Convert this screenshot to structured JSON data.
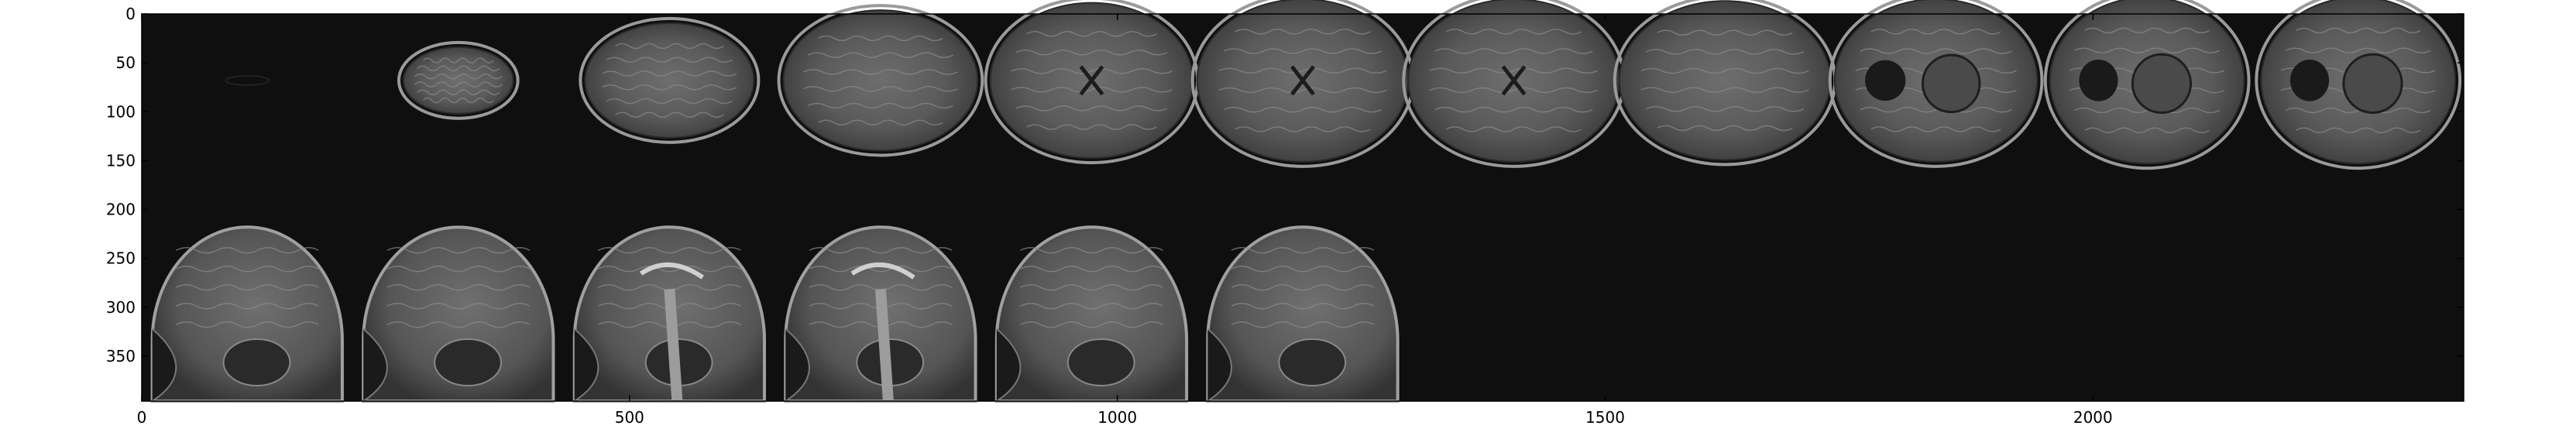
{
  "figure": {
    "background": "#ffffff",
    "image_background": "#0f0f0f",
    "axis_color": "#000000"
  },
  "x_axis": {
    "range": [
      0,
      2380
    ],
    "ticks": [
      0,
      500,
      1000,
      1500,
      2000
    ],
    "tick_labels": [
      "0",
      "500",
      "1000",
      "1500",
      "2000"
    ]
  },
  "y_axis": {
    "range": [
      0,
      396
    ],
    "ticks": [
      0,
      50,
      100,
      150,
      200,
      250,
      300,
      350
    ],
    "tick_labels": [
      "0",
      "50",
      "100",
      "150",
      "200",
      "250",
      "300",
      "350"
    ]
  },
  "montage": {
    "axial_slice_count": 11,
    "sagittal_slice_count": 6,
    "axial_icon": "axial-mri-slice",
    "sagittal_icon": "sagittal-mri-slice"
  }
}
